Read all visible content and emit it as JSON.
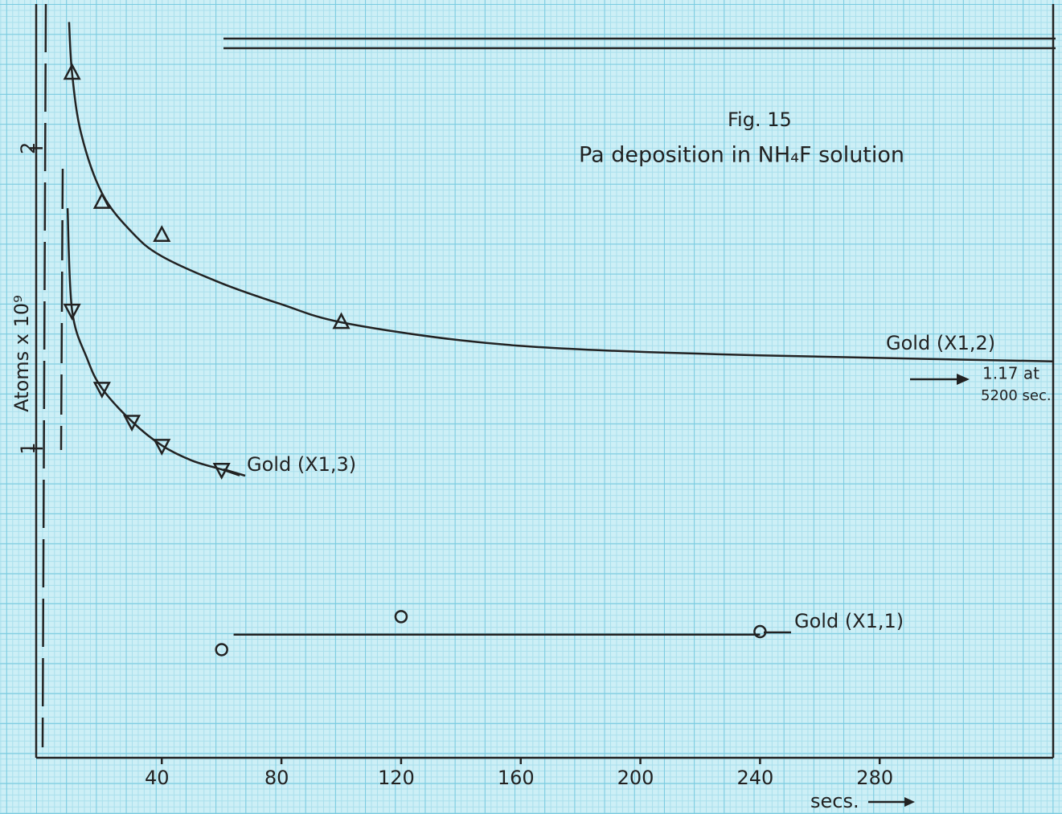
{
  "chart_data": {
    "type": "scatter",
    "title": "Fig. 15",
    "subtitle": "Pa deposition in NH₄F solution",
    "y_label": "Atoms x 10⁹",
    "x_label": "secs.",
    "annotations": [
      "1.17 at",
      "5200 sec."
    ],
    "xlim": [
      -2,
      338
    ],
    "ylim": [
      -0.03,
      2.48
    ],
    "xticks": [
      40,
      80,
      120,
      160,
      200,
      240,
      280
    ],
    "yticks": [
      1,
      2
    ],
    "series": [
      {
        "name": "Gold (X1,2)",
        "color": "#222222",
        "marker": "triangle-up",
        "x": [
          10,
          20,
          40,
          100
        ],
        "values": [
          2.25,
          1.82,
          1.71,
          1.42
        ],
        "curve_x": [
          9,
          10,
          13,
          20,
          30,
          40,
          60,
          80,
          100,
          140,
          180,
          240,
          338
        ],
        "curve_y": [
          2.42,
          2.25,
          2.05,
          1.85,
          1.72,
          1.64,
          1.55,
          1.48,
          1.42,
          1.36,
          1.33,
          1.31,
          1.29
        ]
      },
      {
        "name": "Gold (X1,3)",
        "color": "#222222",
        "marker": "triangle-down",
        "x": [
          10,
          20,
          30,
          40,
          60
        ],
        "values": [
          1.46,
          1.2,
          1.09,
          1.01,
          0.93
        ],
        "curve_x": [
          8.5,
          10,
          15,
          20,
          30,
          40,
          50,
          60,
          66
        ],
        "curve_y": [
          1.8,
          1.46,
          1.3,
          1.2,
          1.09,
          1.01,
          0.96,
          0.93,
          0.91
        ]
      },
      {
        "name": "Gold (X1,1)",
        "color": "#222222",
        "marker": "circle",
        "x": [
          60,
          120,
          240
        ],
        "values": [
          0.33,
          0.44,
          0.39
        ],
        "curve_x": [
          64,
          240
        ],
        "curve_y": [
          0.38,
          0.38
        ]
      }
    ]
  }
}
